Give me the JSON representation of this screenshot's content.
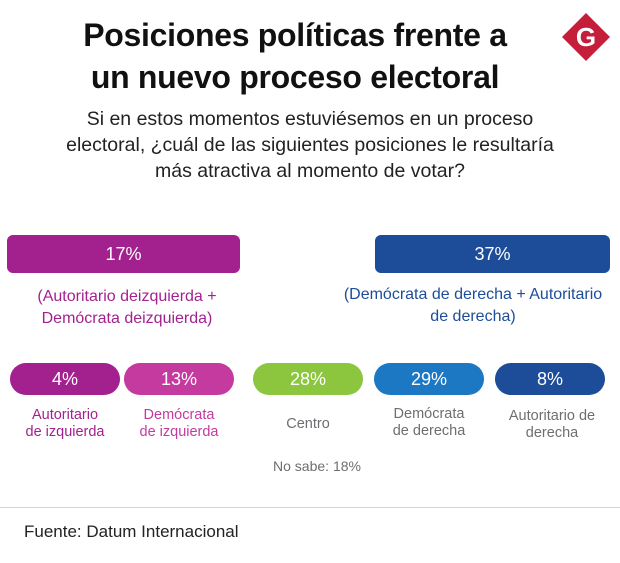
{
  "title_line1": "Posiciones políticas frente a",
  "title_line2": "un nuevo proceso electoral",
  "subtitle_line1": "Si en estos momentos estuviésemos en un proceso",
  "subtitle_line2": "electoral, ¿cuál de las siguientes posiciones le resultaría",
  "subtitle_line3": "más atractiva al momento de votar?",
  "logo_letter": "G",
  "colors": {
    "left_group": "#a3218f",
    "autoritario_izq": "#a3218f",
    "democrata_izq": "#c53a9e",
    "centro": "#8cc63f",
    "democrata_der": "#1d78c4",
    "autoritario_der": "#1d4d99",
    "right_group": "#1d4d99",
    "neutral_text": "#6d6e71",
    "logo_red": "#c41e3a"
  },
  "chart_data": {
    "type": "table",
    "title": "Posiciones políticas frente a un nuevo proceso electoral",
    "groups": [
      {
        "value": "17%",
        "label_line1": "(Autoritario deizquierda +",
        "label_line2": "Demócrata deizquierda)"
      },
      {
        "value": "37%",
        "label_line1": "(Demócrata de derecha + Autoritario",
        "label_line2": "de derecha)"
      }
    ],
    "categories": [
      {
        "value": "4%",
        "label_line1": "Autoritario",
        "label_line2": "de izquierda"
      },
      {
        "value": "13%",
        "label_line1": "Demócrata",
        "label_line2": "de izquierda"
      },
      {
        "value": "28%",
        "label_line1": "Centro",
        "label_line2": ""
      },
      {
        "value": "29%",
        "label_line1": "Demócrata",
        "label_line2": "de derecha"
      },
      {
        "value": "8%",
        "label_line1": "Autoritario de",
        "label_line2": "derecha"
      }
    ],
    "no_sabe": "No sabe: 18%"
  },
  "source": "Fuente: Datum Internacional"
}
